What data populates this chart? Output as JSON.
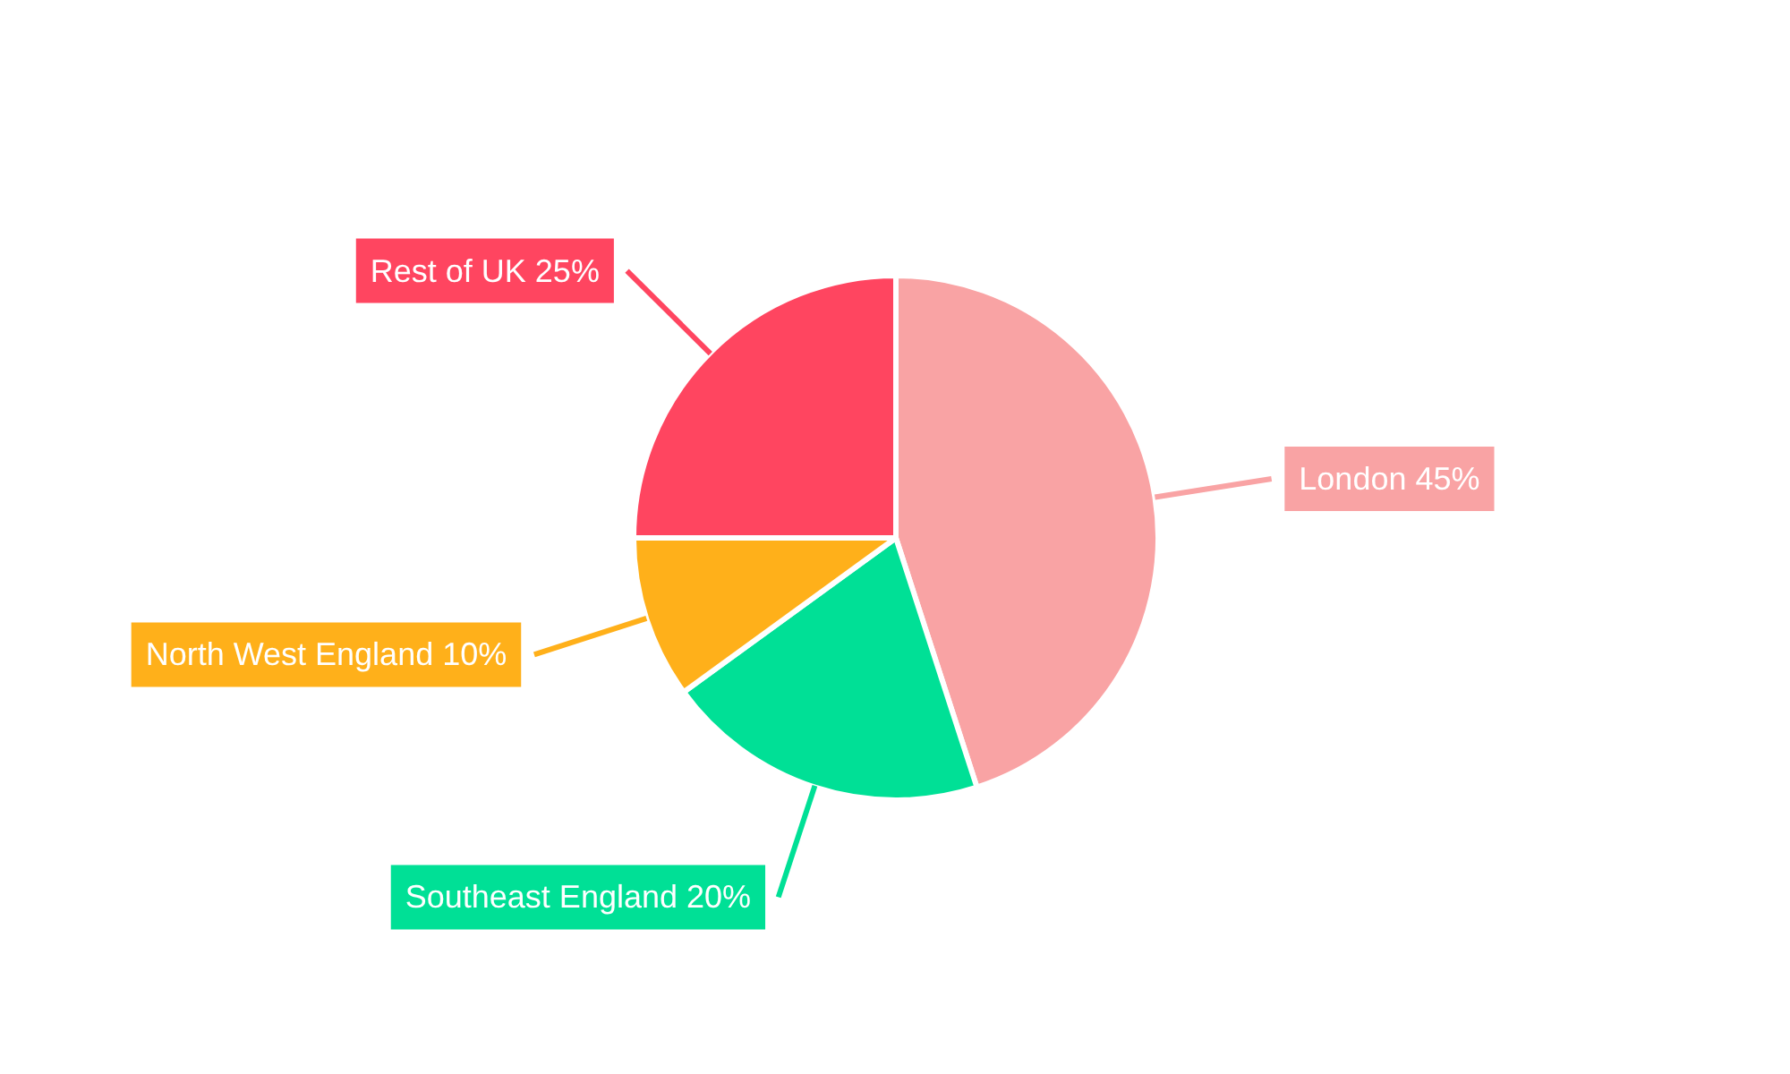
{
  "chart_data": {
    "type": "pie",
    "categories": [
      "London",
      "Southeast England",
      "North West England",
      "Rest of UK"
    ],
    "values": [
      45,
      20,
      10,
      25
    ],
    "colors": [
      "#f9a3a4",
      "#00e096",
      "#ffb01a",
      "#ff4560"
    ],
    "value_labels": [
      "45%",
      "20%",
      "10%",
      "25%"
    ]
  }
}
